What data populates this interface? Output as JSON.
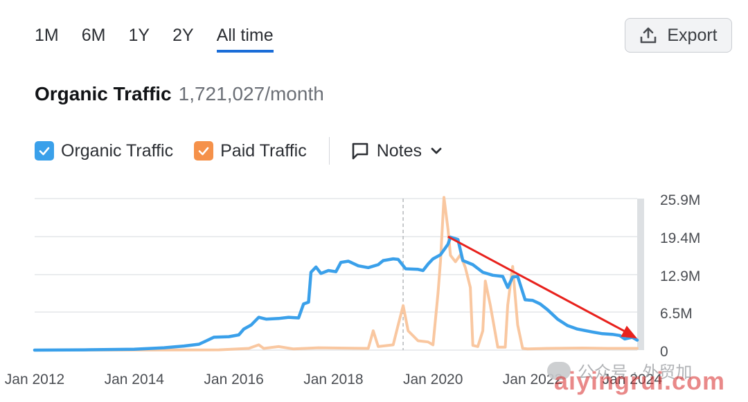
{
  "range_tabs": [
    "1M",
    "6M",
    "1Y",
    "2Y",
    "All time"
  ],
  "active_range": "All time",
  "export_label": "Export",
  "header": {
    "title": "Organic Traffic",
    "value": "1,721,027/month"
  },
  "legend": {
    "organic": {
      "label": "Organic Traffic",
      "color": "#3aa0ea"
    },
    "paid": {
      "label": "Paid Traffic",
      "color": "#f5914a"
    },
    "notes_label": "Notes"
  },
  "watermark": {
    "text": "公众号 · 外贸加",
    "overlay": "aiyingrui.com"
  },
  "chart_data": {
    "type": "line",
    "title": "",
    "xlabel": "",
    "ylabel": "",
    "x_tick_labels": [
      "Jan 2012",
      "Jan 2014",
      "Jan 2016",
      "Jan 2018",
      "Jan 2020",
      "Jan 2022",
      "Jan 2024"
    ],
    "x_ticks": [
      2012,
      2014,
      2016,
      2018,
      2020,
      2022,
      2024
    ],
    "xlim": [
      2012,
      2024.1
    ],
    "y_tick_labels": [
      "0",
      "6.5M",
      "12.9M",
      "19.4M",
      "25.9M"
    ],
    "y_ticks": [
      0,
      6.5,
      12.9,
      19.4,
      25.9
    ],
    "ylim": [
      0,
      25.9
    ],
    "y_unit": "M",
    "grid": true,
    "note_marker_x": 2019.4,
    "trend_arrow": {
      "from": [
        2020.3,
        19.4
      ],
      "to": [
        2024.1,
        2.0
      ],
      "color": "#e8221d"
    },
    "series": [
      {
        "name": "Organic Traffic",
        "color": "#3aa0ea",
        "points": [
          [
            2012.0,
            0.0
          ],
          [
            2013.0,
            0.05
          ],
          [
            2014.0,
            0.15
          ],
          [
            2014.6,
            0.4
          ],
          [
            2015.0,
            0.7
          ],
          [
            2015.3,
            1.0
          ],
          [
            2015.45,
            1.6
          ],
          [
            2015.6,
            2.2
          ],
          [
            2015.9,
            2.3
          ],
          [
            2016.1,
            2.6
          ],
          [
            2016.2,
            3.6
          ],
          [
            2016.35,
            4.3
          ],
          [
            2016.5,
            5.6
          ],
          [
            2016.65,
            5.3
          ],
          [
            2016.9,
            5.4
          ],
          [
            2017.1,
            5.6
          ],
          [
            2017.3,
            5.5
          ],
          [
            2017.4,
            7.9
          ],
          [
            2017.5,
            8.2
          ],
          [
            2017.55,
            13.3
          ],
          [
            2017.65,
            14.2
          ],
          [
            2017.75,
            13.1
          ],
          [
            2017.9,
            13.6
          ],
          [
            2018.05,
            13.4
          ],
          [
            2018.15,
            15.0
          ],
          [
            2018.3,
            15.2
          ],
          [
            2018.5,
            14.4
          ],
          [
            2018.7,
            14.1
          ],
          [
            2018.9,
            14.6
          ],
          [
            2019.0,
            15.3
          ],
          [
            2019.2,
            15.6
          ],
          [
            2019.3,
            15.5
          ],
          [
            2019.45,
            13.9
          ],
          [
            2019.7,
            13.8
          ],
          [
            2019.8,
            13.6
          ],
          [
            2019.9,
            14.7
          ],
          [
            2020.0,
            15.6
          ],
          [
            2020.15,
            16.3
          ],
          [
            2020.3,
            18.1
          ],
          [
            2020.35,
            19.3
          ],
          [
            2020.5,
            18.9
          ],
          [
            2020.6,
            15.3
          ],
          [
            2020.8,
            14.6
          ],
          [
            2021.0,
            13.3
          ],
          [
            2021.2,
            12.8
          ],
          [
            2021.4,
            12.6
          ],
          [
            2021.5,
            10.7
          ],
          [
            2021.6,
            12.5
          ],
          [
            2021.7,
            12.6
          ],
          [
            2021.85,
            8.6
          ],
          [
            2022.0,
            8.5
          ],
          [
            2022.15,
            7.9
          ],
          [
            2022.3,
            6.9
          ],
          [
            2022.5,
            5.3
          ],
          [
            2022.7,
            4.2
          ],
          [
            2022.9,
            3.6
          ],
          [
            2023.2,
            3.1
          ],
          [
            2023.4,
            2.8
          ],
          [
            2023.6,
            2.7
          ],
          [
            2023.75,
            2.5
          ],
          [
            2023.85,
            1.9
          ],
          [
            2024.0,
            2.2
          ],
          [
            2024.1,
            1.7
          ]
        ]
      },
      {
        "name": "Paid Traffic",
        "color": "#f9c7a0",
        "points": [
          [
            2012.0,
            0.0
          ],
          [
            2015.7,
            0.05
          ],
          [
            2016.3,
            0.3
          ],
          [
            2016.5,
            0.9
          ],
          [
            2016.6,
            0.3
          ],
          [
            2016.9,
            0.6
          ],
          [
            2017.2,
            0.2
          ],
          [
            2017.7,
            0.4
          ],
          [
            2018.7,
            0.3
          ],
          [
            2018.8,
            3.3
          ],
          [
            2018.9,
            0.6
          ],
          [
            2019.2,
            0.9
          ],
          [
            2019.3,
            4.3
          ],
          [
            2019.4,
            7.6
          ],
          [
            2019.5,
            3.3
          ],
          [
            2019.7,
            1.6
          ],
          [
            2019.9,
            1.4
          ],
          [
            2020.0,
            0.9
          ],
          [
            2020.1,
            9.7
          ],
          [
            2020.15,
            15.2
          ],
          [
            2020.22,
            26.1
          ],
          [
            2020.3,
            20.7
          ],
          [
            2020.35,
            16.2
          ],
          [
            2020.45,
            15.1
          ],
          [
            2020.55,
            16.3
          ],
          [
            2020.65,
            14.1
          ],
          [
            2020.75,
            10.7
          ],
          [
            2020.8,
            0.8
          ],
          [
            2020.9,
            0.6
          ],
          [
            2021.0,
            3.3
          ],
          [
            2021.05,
            11.8
          ],
          [
            2021.15,
            7.7
          ],
          [
            2021.3,
            0.5
          ],
          [
            2021.45,
            0.5
          ],
          [
            2021.5,
            7.7
          ],
          [
            2021.6,
            14.3
          ],
          [
            2021.7,
            4.3
          ],
          [
            2021.8,
            0.3
          ],
          [
            2021.9,
            0.2
          ],
          [
            2022.3,
            0.3
          ],
          [
            2023.0,
            0.35
          ],
          [
            2023.5,
            0.3
          ],
          [
            2024.0,
            0.3
          ],
          [
            2024.1,
            0.3
          ]
        ]
      }
    ]
  }
}
